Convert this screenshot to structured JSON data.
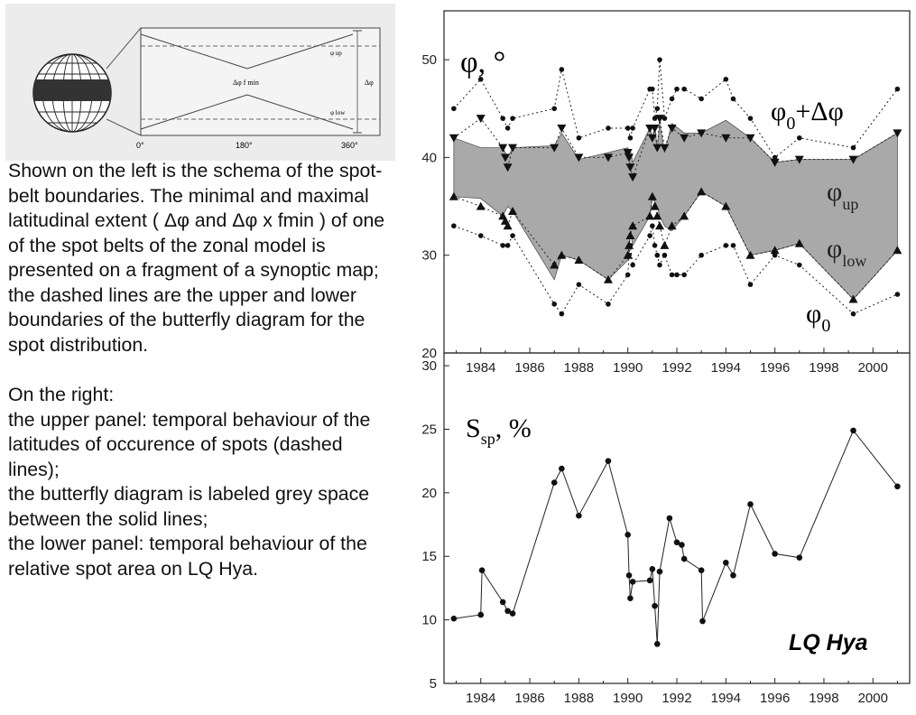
{
  "schema": {
    "axis_ticks": [
      "0°",
      "180°",
      "360°"
    ],
    "labels": {
      "phi_up": "φ up",
      "phi_low": "φ low",
      "delta_phi": "Δφ",
      "delta_phi_fmin": "Δφ  f min"
    }
  },
  "description": {
    "p1": "Shown on the left is the schema of the spot-belt boundaries. The minimal and maximal latitudinal extent ( Δφ and Δφ x fmin ) of one of the spot belts of the zonal model is presented on a fragment of a synoptic map; the dashed lines are the upper and lower boundaries of the butterfly diagram for the spot distribution.",
    "p2_lines": [
      "On the right:",
      "the upper panel: temporal behaviour of the latitudes of occurence of spots (dashed lines);",
      "the butterfly diagram is labeled grey space between the solid lines;",
      "the lower panel: temporal behaviour of the relative spot area on LQ Hya."
    ]
  },
  "chart_data": [
    {
      "type": "area",
      "xlim": [
        1982.5,
        2001.5
      ],
      "ylim": [
        20,
        55
      ],
      "yticks": [
        20,
        30,
        40,
        50
      ],
      "xticks": [
        1984,
        1986,
        1988,
        1990,
        1992,
        1994,
        1996,
        1998,
        2000
      ],
      "xtick_labels": [
        "1984",
        "1986",
        "1988",
        "1990",
        "1992",
        "1994",
        "1996",
        "1998",
        "2000"
      ],
      "ylabel": "φ, °",
      "annotations": {
        "phi0_plus": {
          "base": "φ",
          "sub": "0",
          "rest": "+Δφ"
        },
        "phi_up": {
          "base": "φ",
          "sub": "up"
        },
        "phi_low": {
          "base": "φ",
          "sub": "low"
        },
        "phi0": {
          "base": "φ",
          "sub": "0"
        }
      },
      "band": {
        "x": [
          1982.9,
          1984.0,
          1984.9,
          1985.1,
          1985.3,
          1987.0,
          1987.3,
          1988.0,
          1989.2,
          1990.0,
          1990.05,
          1990.1,
          1990.2,
          1990.9,
          1991.0,
          1991.1,
          1991.2,
          1991.3,
          1991.5,
          1991.8,
          1992.3,
          1993.0,
          1994.0,
          1995.0,
          1996.0,
          1997.0,
          1999.2,
          2001.0
        ],
        "upper": [
          42,
          41,
          41,
          40,
          41,
          41.2,
          42.5,
          39.8,
          40.5,
          41,
          40.5,
          40.8,
          39.5,
          43,
          42,
          43,
          41,
          43.5,
          40.5,
          43.5,
          42.5,
          42.5,
          43.8,
          42,
          39.5,
          39.8,
          39.8,
          42.5
        ],
        "lower": [
          36,
          35.8,
          34,
          35,
          34.5,
          27.5,
          30,
          29.5,
          27.5,
          29.5,
          30.5,
          32.5,
          31,
          34,
          36,
          35.5,
          35,
          34,
          33,
          32.5,
          34,
          36.5,
          35,
          30,
          30.5,
          31.2,
          25.5,
          30.5
        ]
      },
      "series": [
        {
          "marker": "circle",
          "dashed": true,
          "x": [
            1982.9,
            1984.0,
            1984.9,
            1985.1,
            1985.3,
            1987.0,
            1987.3,
            1988.0,
            1989.2,
            1990.0,
            1990.1,
            1990.2,
            1990.9,
            1991.0,
            1991.1,
            1991.2,
            1991.3,
            1991.5,
            1991.8,
            1992.0,
            1992.3,
            1993.0,
            1994.0,
            1994.3,
            1995.0,
            1996.0,
            1997.0,
            1999.2,
            2001.0
          ],
          "values": [
            45,
            48,
            44,
            43,
            44,
            45,
            49,
            42,
            43,
            43,
            42,
            43,
            47,
            47,
            44,
            45,
            50,
            44,
            46,
            47,
            47,
            46,
            48,
            46,
            44,
            40,
            42,
            41,
            47
          ]
        },
        {
          "marker": "triangle-down",
          "dashed": true,
          "x": [
            1982.9,
            1984.0,
            1984.9,
            1985.0,
            1985.1,
            1985.3,
            1987.0,
            1987.3,
            1988.0,
            1989.2,
            1990.0,
            1990.05,
            1990.1,
            1990.2,
            1990.9,
            1991.0,
            1991.1,
            1991.2,
            1991.3,
            1991.5,
            1991.8,
            1992.3,
            1993.0,
            1994.0,
            1995.0,
            1996.0,
            1997.0,
            1999.2,
            2001.0
          ],
          "values": [
            42,
            44,
            41,
            40,
            39,
            41,
            41,
            43,
            40,
            40,
            40.5,
            40,
            39,
            38,
            43,
            42,
            43,
            41,
            44,
            41,
            43,
            42,
            42.5,
            42,
            42,
            39.5,
            39.8,
            39.8,
            42.5
          ]
        },
        {
          "marker": "triangle-up",
          "dashed": true,
          "x": [
            1982.9,
            1984.0,
            1984.9,
            1985.0,
            1985.1,
            1985.3,
            1987.0,
            1987.3,
            1988.0,
            1989.2,
            1990.0,
            1990.05,
            1990.1,
            1990.2,
            1990.9,
            1991.0,
            1991.1,
            1991.2,
            1991.3,
            1991.5,
            1991.8,
            1992.3,
            1993.0,
            1994.0,
            1995.0,
            1996.0,
            1997.0,
            1999.2,
            2001.0
          ],
          "values": [
            36,
            35,
            34,
            33.5,
            33,
            34.5,
            29,
            30,
            29.5,
            27.5,
            30,
            31,
            32,
            33,
            34,
            36,
            35,
            34,
            33,
            31,
            33,
            34,
            36.5,
            35,
            30,
            30.5,
            31.2,
            25.5,
            30.5
          ]
        },
        {
          "marker": "circle",
          "dashed": true,
          "x": [
            1982.9,
            1984.0,
            1984.9,
            1985.1,
            1985.3,
            1987.0,
            1987.3,
            1988.0,
            1989.2,
            1990.0,
            1990.05,
            1990.1,
            1990.2,
            1990.9,
            1991.0,
            1991.1,
            1991.2,
            1991.3,
            1991.5,
            1991.8,
            1992.0,
            1992.3,
            1993.0,
            1994.0,
            1994.3,
            1995.0,
            1996.0,
            1997.0,
            1999.2,
            2001.0
          ],
          "values": [
            33,
            32,
            31,
            31,
            32,
            25,
            24,
            27,
            25,
            28,
            30,
            31,
            29,
            32,
            33,
            31,
            30,
            29,
            30,
            28,
            28,
            28,
            30,
            31,
            31,
            27,
            30,
            29,
            24,
            26
          ]
        }
      ]
    },
    {
      "type": "line",
      "xlim": [
        1982.5,
        2001.5
      ],
      "ylim": [
        5,
        31
      ],
      "yticks": [
        5,
        10,
        15,
        20,
        25,
        30
      ],
      "xticks": [
        1984,
        1986,
        1988,
        1990,
        1992,
        1994,
        1996,
        1998,
        2000
      ],
      "xtick_labels": [
        "1984",
        "1986",
        "1988",
        "1990",
        "1992",
        "1994",
        "1996",
        "1998",
        "2000"
      ],
      "ylabel": {
        "base": "S",
        "sub": "sp",
        "rest": ", %"
      },
      "annotation": "LQ Hya",
      "series": [
        {
          "marker": "circle",
          "x": [
            1982.9,
            1984.0,
            1984.05,
            1984.9,
            1985.1,
            1985.3,
            1987.0,
            1987.3,
            1988.0,
            1989.2,
            1990.0,
            1990.05,
            1990.1,
            1990.2,
            1990.9,
            1991.0,
            1991.1,
            1991.2,
            1991.3,
            1991.7,
            1992.0,
            1992.2,
            1992.3,
            1993.0,
            1993.05,
            1994.0,
            1994.3,
            1995.0,
            1996.0,
            1997.0,
            1999.2,
            2001.0
          ],
          "values": [
            10.1,
            10.4,
            13.9,
            11.4,
            10.7,
            10.5,
            20.8,
            21.9,
            18.2,
            22.5,
            16.7,
            13.5,
            11.7,
            13.0,
            13.1,
            14.0,
            11.1,
            8.1,
            13.8,
            18.0,
            16.1,
            15.9,
            14.8,
            13.9,
            9.9,
            14.5,
            13.5,
            19.1,
            15.2,
            14.9,
            24.9,
            20.5
          ]
        }
      ]
    }
  ]
}
